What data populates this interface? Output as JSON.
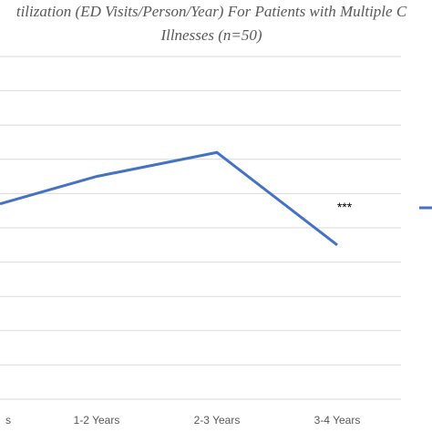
{
  "chart_data": {
    "type": "line",
    "title_lines": [
      "tilization (ED Visits/Person/Year) For Patients with Multiple C",
      "Illnesses (n=50)"
    ],
    "categories": [
      "s",
      "1-2 Years",
      "2-3 Years",
      "3-4 Years"
    ],
    "series": [
      {
        "values": [
          5.7,
          6.5,
          7.2,
          4.5
        ]
      }
    ],
    "ylim": [
      0,
      10
    ],
    "grid": true,
    "annotations": [
      {
        "category": "3-4 Years",
        "text": "***"
      }
    ],
    "legend": {
      "position": "right"
    },
    "colors": {
      "series": "#4472C4",
      "grid": "#d9d9d9",
      "text": "#595959"
    }
  }
}
